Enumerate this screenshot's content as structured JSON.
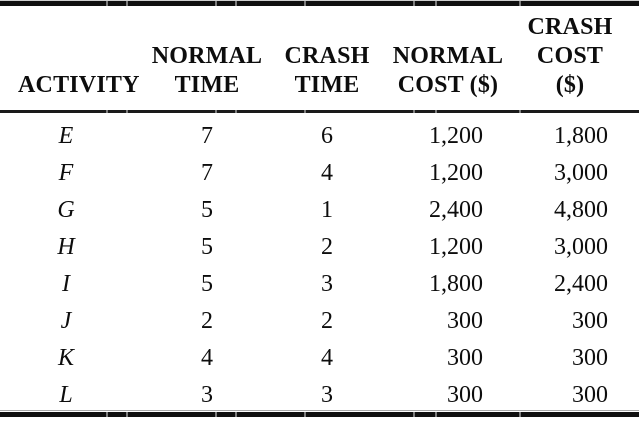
{
  "table": {
    "columns": [
      {
        "label_lines": [
          "ACTIVITY"
        ]
      },
      {
        "label_lines": [
          "NORMAL",
          "TIME"
        ]
      },
      {
        "label_lines": [
          "CRASH",
          "TIME"
        ]
      },
      {
        "label_lines": [
          "NORMAL",
          "COST ($)"
        ]
      },
      {
        "label_lines": [
          "CRASH",
          "COST",
          "($)"
        ]
      }
    ],
    "rows": [
      {
        "activity": "E",
        "normal_time": "7",
        "crash_time": "6",
        "normal_cost": "1,200",
        "crash_cost": "1,800"
      },
      {
        "activity": "F",
        "normal_time": "7",
        "crash_time": "4",
        "normal_cost": "1,200",
        "crash_cost": "3,000"
      },
      {
        "activity": "G",
        "normal_time": "5",
        "crash_time": "1",
        "normal_cost": "2,400",
        "crash_cost": "4,800"
      },
      {
        "activity": "H",
        "normal_time": "5",
        "crash_time": "2",
        "normal_cost": "1,200",
        "crash_cost": "3,000"
      },
      {
        "activity": "I",
        "normal_time": "5",
        "crash_time": "3",
        "normal_cost": "1,800",
        "crash_cost": "2,400"
      },
      {
        "activity": "J",
        "normal_time": "2",
        "crash_time": "2",
        "normal_cost": "300",
        "crash_cost": "300"
      },
      {
        "activity": "K",
        "normal_time": "4",
        "crash_time": "4",
        "normal_cost": "300",
        "crash_cost": "300"
      },
      {
        "activity": "L",
        "normal_time": "3",
        "crash_time": "3",
        "normal_cost": "300",
        "crash_cost": "300"
      }
    ],
    "colors": {
      "text": "#0d0d0d",
      "rule": "#101010",
      "background": "#ffffff"
    }
  }
}
